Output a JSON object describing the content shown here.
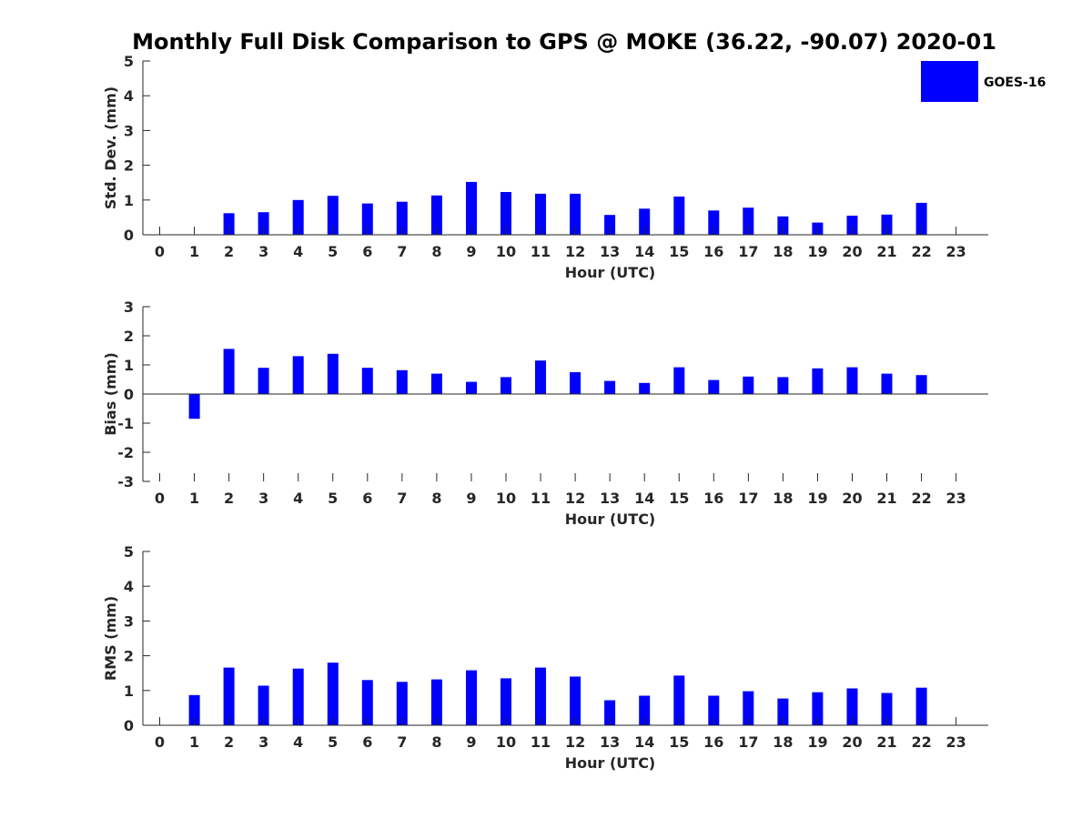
{
  "figure": {
    "title": "Monthly Full Disk Comparison to GPS @ MOKE (36.22, -90.07) 2020-01"
  },
  "legend": {
    "label": "GOES-16",
    "placement": "top-right"
  },
  "colors": {
    "bar": "#0000ff",
    "axis": "#262626",
    "background": "#ffffff"
  },
  "chart_data": [
    {
      "type": "bar",
      "title": "Monthly Full Disk Comparison to GPS @ MOKE (36.22, -90.07) 2020-01",
      "xlabel": "Hour (UTC)",
      "ylabel": "Std. Dev. (mm)",
      "categories": [
        "0",
        "1",
        "2",
        "3",
        "4",
        "5",
        "6",
        "7",
        "8",
        "9",
        "10",
        "11",
        "12",
        "13",
        "14",
        "15",
        "16",
        "17",
        "18",
        "19",
        "20",
        "21",
        "22",
        "23"
      ],
      "ylim": [
        0,
        5
      ],
      "yticks": [
        0,
        1,
        2,
        3,
        4,
        5
      ],
      "grid": false,
      "series": [
        {
          "name": "GOES-16",
          "values": [
            null,
            null,
            0.62,
            0.65,
            1.0,
            1.12,
            0.9,
            0.95,
            1.13,
            1.52,
            1.23,
            1.18,
            1.18,
            0.57,
            0.75,
            1.1,
            0.7,
            0.78,
            0.53,
            0.35,
            0.55,
            0.58,
            0.92,
            null
          ]
        }
      ]
    },
    {
      "type": "bar",
      "xlabel": "Hour (UTC)",
      "ylabel": "Bias (mm)",
      "categories": [
        "0",
        "1",
        "2",
        "3",
        "4",
        "5",
        "6",
        "7",
        "8",
        "9",
        "10",
        "11",
        "12",
        "13",
        "14",
        "15",
        "16",
        "17",
        "18",
        "19",
        "20",
        "21",
        "22",
        "23"
      ],
      "ylim": [
        -3,
        3
      ],
      "yticks": [
        -3,
        -2,
        -1,
        0,
        1,
        2,
        3
      ],
      "grid": false,
      "series": [
        {
          "name": "GOES-16",
          "values": [
            null,
            -0.85,
            1.55,
            0.9,
            1.3,
            1.38,
            0.9,
            0.82,
            0.7,
            0.42,
            0.58,
            1.15,
            0.75,
            0.45,
            0.38,
            0.92,
            0.48,
            0.6,
            0.58,
            0.88,
            0.92,
            0.7,
            0.65,
            null
          ]
        }
      ]
    },
    {
      "type": "bar",
      "xlabel": "Hour (UTC)",
      "ylabel": "RMS (mm)",
      "categories": [
        "0",
        "1",
        "2",
        "3",
        "4",
        "5",
        "6",
        "7",
        "8",
        "9",
        "10",
        "11",
        "12",
        "13",
        "14",
        "15",
        "16",
        "17",
        "18",
        "19",
        "20",
        "21",
        "22",
        "23"
      ],
      "ylim": [
        0,
        5
      ],
      "yticks": [
        0,
        1,
        2,
        3,
        4,
        5
      ],
      "grid": false,
      "series": [
        {
          "name": "GOES-16",
          "values": [
            null,
            0.87,
            1.66,
            1.14,
            1.63,
            1.8,
            1.3,
            1.25,
            1.32,
            1.58,
            1.35,
            1.66,
            1.4,
            0.72,
            0.85,
            1.43,
            0.85,
            0.98,
            0.77,
            0.95,
            1.06,
            0.93,
            1.08,
            null
          ]
        }
      ]
    }
  ]
}
